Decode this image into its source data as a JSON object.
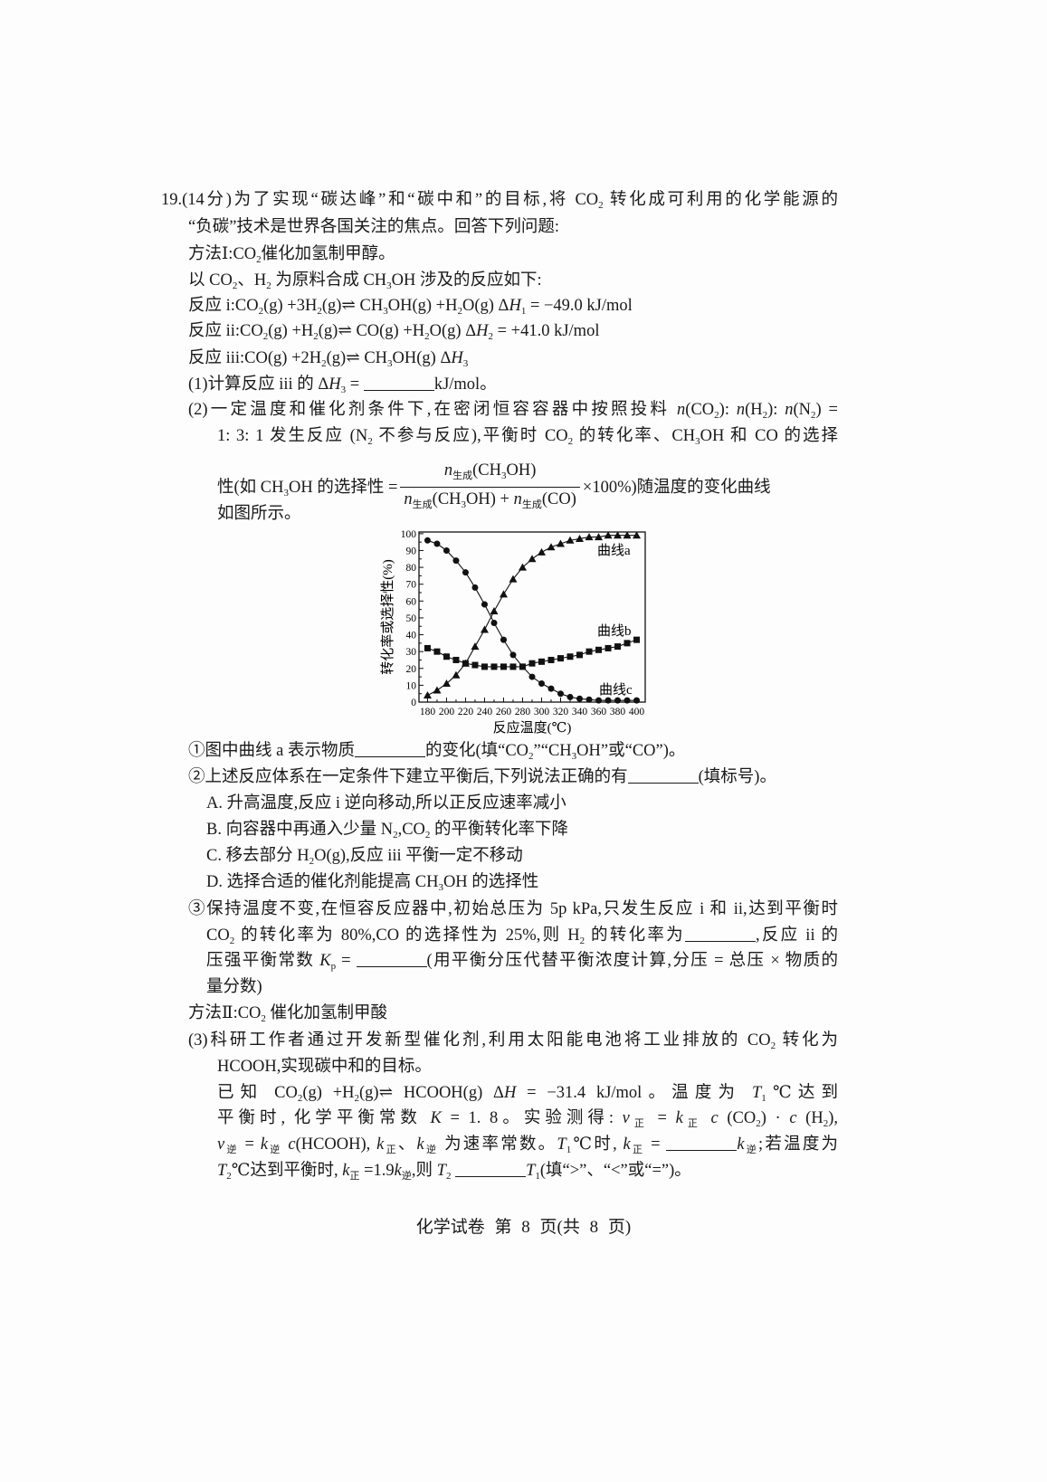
{
  "lines": [
    {
      "segs": [
        "19.(14分)为了实现“碳达峰”和“碳中和”的目标,将 CO",
        {
          "s": "2"
        },
        " 转化成可利用的化学能源的"
      ]
    },
    {
      "segs": [
        "“负碳”技术是世界各国关注的焦点。回答下列问题:"
      ]
    },
    {
      "segs": [
        "方法Ⅰ:CO",
        {
          "s": "2"
        },
        "催化加氢制甲醇。"
      ]
    },
    {
      "segs": [
        "以 CO",
        {
          "s": "2"
        },
        "、H",
        {
          "s": "2"
        },
        " 为原料合成 CH",
        {
          "s": "3"
        },
        "OH 涉及的反应如下:"
      ]
    },
    {
      "segs": [
        "反应 i:CO",
        {
          "s": "2"
        },
        "(g) +3H",
        {
          "s": "2"
        },
        "(g)⇌ CH",
        {
          "s": "3"
        },
        "OH(g) +H",
        {
          "s": "2"
        },
        "O(g)        Δ",
        {
          "i": "H"
        },
        {
          "s": "1"
        },
        " = −49.0 kJ/mol"
      ]
    },
    {
      "segs": [
        "反应 ii:CO",
        {
          "s": "2"
        },
        "(g) +H",
        {
          "s": "2"
        },
        "(g)⇌ CO(g) +H",
        {
          "s": "2"
        },
        "O(g)        Δ",
        {
          "i": "H"
        },
        {
          "s": "2"
        },
        " = +41.0 kJ/mol"
      ]
    },
    {
      "segs": [
        "反应 iii:CO(g) +2H",
        {
          "s": "2"
        },
        "(g)⇌ CH",
        {
          "s": "3"
        },
        "OH(g)        Δ",
        {
          "i": "H"
        },
        {
          "s": "3"
        }
      ]
    },
    {
      "segs": [
        "(1)计算反应 iii 的 Δ",
        {
          "i": "H"
        },
        {
          "s": "3"
        },
        " = ",
        {
          "b": 1
        },
        "kJ/mol。"
      ]
    },
    {
      "segs": [
        "(2)一定温度和催化剂条件下,在密闭恒容容器中按照投料 ",
        {
          "i": "n"
        },
        "(CO",
        {
          "s": "2"
        },
        "): ",
        {
          "i": "n"
        },
        "(H",
        {
          "s": "2"
        },
        "): ",
        {
          "i": "n"
        },
        "(N",
        {
          "s": "2"
        },
        ") ="
      ]
    },
    {
      "segs": [
        "1: 3: 1 发生反应 (N",
        {
          "s": "2"
        },
        " 不参与反应),平衡时 CO",
        {
          "s": "2"
        },
        " 的转化率、CH",
        {
          "s": "3"
        },
        "OH 和 CO 的选择"
      ]
    },
    {
      "segs": [
        "性(如 CH",
        {
          "s": "3"
        },
        "OH 的选择性 =",
        {
          "f": {
            "n": [
              {
                "i": "n"
              },
              {
                "s": "生成"
              },
              "(CH",
              {
                "s": "3"
              },
              "OH)"
            ],
            "d": [
              {
                "i": "n"
              },
              {
                "s": "生成"
              },
              "(CH",
              {
                "s": "3"
              },
              "OH) + ",
              {
                "i": "n"
              },
              {
                "s": "生成"
              },
              "(CO)"
            ]
          }
        },
        "×100%)随温度的变化曲线"
      ]
    },
    {
      "segs": [
        "如图所示。"
      ]
    },
    {
      "segs": [
        "①图中曲线 a 表示物质",
        {
          "b": 1
        },
        "的变化(填“CO",
        {
          "s": "2"
        },
        "”“CH",
        {
          "s": "3"
        },
        "OH”或“CO”)。"
      ]
    },
    {
      "segs": [
        "②上述反应体系在一定条件下建立平衡后,下列说法正确的有",
        {
          "b": 1
        },
        "(填标号)。"
      ]
    },
    {
      "segs": [
        "A. 升高温度,反应 i 逆向移动,所以正反应速率减小"
      ]
    },
    {
      "segs": [
        "B. 向容器中再通入少量 N",
        {
          "s": "2"
        },
        ",CO",
        {
          "s": "2"
        },
        " 的平衡转化率下降"
      ]
    },
    {
      "segs": [
        "C. 移去部分 H",
        {
          "s": "2"
        },
        "O(g),反应 iii 平衡一定不移动"
      ]
    },
    {
      "segs": [
        "D. 选择合适的催化剂能提高 CH",
        {
          "s": "3"
        },
        "OH 的选择性"
      ]
    },
    {
      "segs": [
        "③保持温度不变,在恒容反应器中,初始总压为 5p kPa,只发生反应 i 和 ii,达到平衡时"
      ]
    },
    {
      "segs": [
        "CO",
        {
          "s": "2"
        },
        " 的转化率为 80%,CO 的选择性为 25%,则 H",
        {
          "s": "2"
        },
        " 的转化率为",
        {
          "b": 1
        },
        ",反应 ii 的"
      ]
    },
    {
      "segs": [
        "压强平衡常数 ",
        {
          "i": "K"
        },
        {
          "s": "p"
        },
        " = ",
        {
          "b": 1
        },
        "(用平衡分压代替平衡浓度计算,分压 = 总压 × 物质的"
      ]
    },
    {
      "segs": [
        "量分数)"
      ]
    },
    {
      "segs": [
        "方法Ⅱ:CO",
        {
          "s": "2"
        },
        " 催化加氢制甲酸"
      ]
    },
    {
      "segs": [
        "(3)科研工作者通过开发新型催化剂,利用太阳能电池将工业排放的 CO",
        {
          "s": "2"
        },
        " 转化为"
      ]
    },
    {
      "segs": [
        "HCOOH,实现碳中和的目标。"
      ]
    },
    {
      "segs": [
        "已知 CO",
        {
          "s": "2"
        },
        "(g) +H",
        {
          "s": "2"
        },
        "(g)⇌ HCOOH(g)   Δ",
        {
          "i": "H"
        },
        " = −31.4 kJ/mol。温度为 ",
        {
          "i": "T"
        },
        {
          "s": "1"
        },
        "℃达到"
      ]
    },
    {
      "segs": [
        "平衡时, 化学平衡常数 ",
        {
          "i": "K"
        },
        " = 1. 8。实验测得: ",
        {
          "i": "v"
        },
        {
          "s": "正"
        },
        " = ",
        {
          "i": "k"
        },
        {
          "s": "正"
        },
        " ",
        {
          "i": "c"
        },
        " (CO",
        {
          "s": "2"
        },
        ") · ",
        {
          "i": "c"
        },
        " (H",
        {
          "s": "2"
        },
        "),"
      ]
    },
    {
      "segs": [
        {
          "i": "v"
        },
        {
          "s": "逆"
        },
        " = ",
        {
          "i": "k"
        },
        {
          "s": "逆"
        },
        " ",
        {
          "i": "c"
        },
        "(HCOOH), ",
        {
          "i": "k"
        },
        {
          "s": "正"
        },
        "、",
        {
          "i": "k"
        },
        {
          "s": "逆"
        },
        " 为速率常数。",
        {
          "i": "T"
        },
        {
          "s": "1"
        },
        "℃时, ",
        {
          "i": "k"
        },
        {
          "s": "正"
        },
        " = ",
        {
          "b": 1
        },
        {
          "i": "k"
        },
        {
          "s": "逆"
        },
        ";若温度为"
      ]
    },
    {
      "segs": [
        {
          "i": "T"
        },
        {
          "s": "2"
        },
        "℃达到平衡时, ",
        {
          "i": "k"
        },
        {
          "s": "正"
        },
        " =1.9",
        {
          "i": "k"
        },
        {
          "s": "逆"
        },
        ",则 ",
        {
          "i": "T"
        },
        {
          "s": "2"
        },
        " ",
        {
          "b": 1
        },
        {
          "i": "T"
        },
        {
          "s": "1"
        },
        "(填“>”、“<”或“=”)。"
      ]
    }
  ],
  "footer": "化学试卷  第 8 页(共 8 页)",
  "chart_data": {
    "type": "line",
    "xlabel": "反应温度(℃)",
    "ylabel": "转化率或选择性(%)",
    "xlim": [
      171,
      409
    ],
    "ylim": [
      0,
      101
    ],
    "xticks": [
      180,
      200,
      220,
      240,
      260,
      280,
      300,
      320,
      340,
      360,
      380,
      400
    ],
    "yticks": [
      0,
      10,
      20,
      30,
      40,
      50,
      60,
      70,
      80,
      90,
      100
    ],
    "grid": false,
    "x": [
      180,
      190,
      200,
      210,
      220,
      230,
      240,
      250,
      260,
      270,
      280,
      290,
      300,
      310,
      320,
      330,
      340,
      350,
      360,
      370,
      380,
      390,
      400
    ],
    "series": [
      {
        "name": "曲线a",
        "marker": "triangle",
        "values": [
          4,
          7,
          11,
          16,
          23,
          33,
          43,
          54,
          64,
          73,
          80,
          85,
          89,
          92,
          94,
          96,
          97,
          98,
          98,
          99,
          99,
          99,
          99
        ]
      },
      {
        "name": "曲线b",
        "marker": "square",
        "values": [
          32,
          30,
          27,
          25,
          23,
          22,
          21,
          21,
          21,
          21,
          21,
          23,
          24,
          25,
          26,
          27,
          28,
          30,
          31,
          32,
          33,
          35,
          37
        ]
      },
      {
        "name": "曲线c",
        "marker": "circle",
        "values": [
          96,
          94,
          90,
          84,
          77,
          68,
          58,
          47,
          37,
          28,
          21,
          15,
          11,
          8,
          5,
          3,
          2,
          1.5,
          1,
          1,
          1,
          1,
          1
        ]
      }
    ],
    "color": "#111111"
  }
}
